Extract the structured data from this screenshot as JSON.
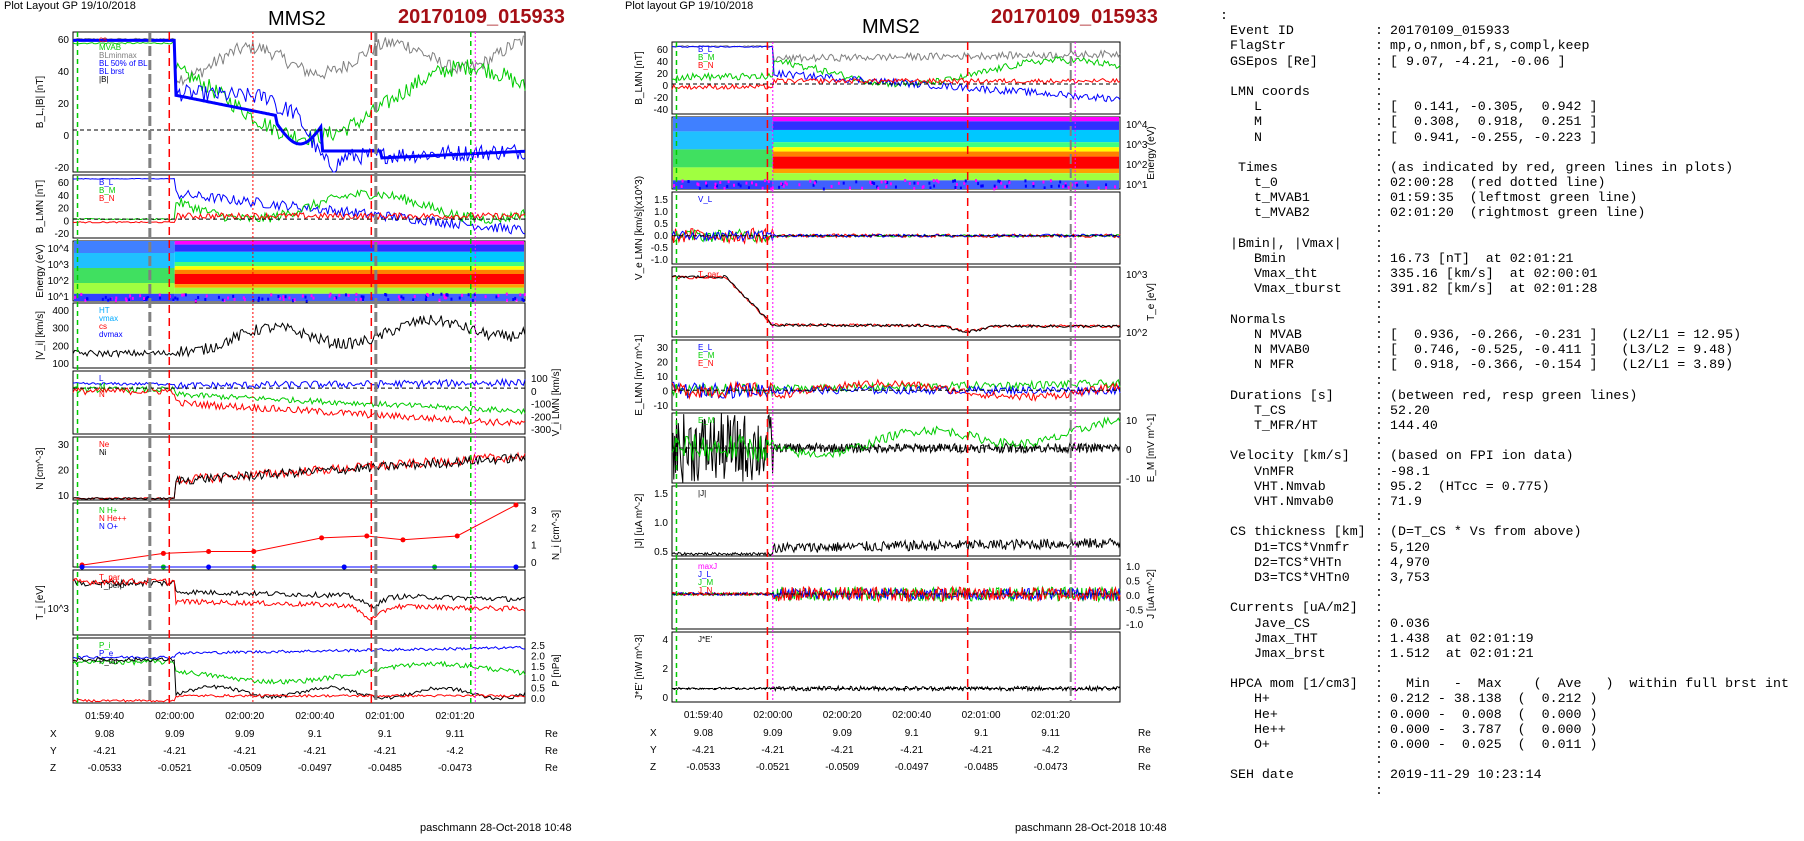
{
  "left_panel": {
    "layout_label": "Plot Layout GP 19/10/2018",
    "spacecraft": "MMS2",
    "event": "20170109_015933",
    "footer": "paschmann 28-Oct-2018 10:48"
  },
  "middle_panel": {
    "layout_label": "Plot layout GP 19/10/2018",
    "spacecraft": "MMS2",
    "event": "20170109_015933",
    "footer": "paschmann 28-Oct-2018 10:48"
  },
  "colors": {
    "red": "#ff0000",
    "green": "#00cc00",
    "blue": "#0000ff",
    "magenta": "#ff00ff",
    "gray": "#808080",
    "black": "#000000",
    "event_red": "#a50f15"
  },
  "chart_data": [
    {
      "type": "line",
      "title": "",
      "time_axis": {
        "tick_labels": [
          "01:59:40",
          "02:00:00",
          "02:00:20",
          "02:00:40",
          "02:01:00",
          "02:01:20"
        ],
        "position_rows": [
          {
            "axis": "X",
            "values": [
              "9.08",
              "9.09",
              "9.09",
              "9.1",
              "9.1",
              "9.11"
            ],
            "unit": "Re"
          },
          {
            "axis": "Y",
            "values": [
              "-4.21",
              "-4.21",
              "-4.21",
              "-4.21",
              "-4.21",
              "-4.2"
            ],
            "unit": "Re"
          },
          {
            "axis": "Z",
            "values": [
              "-0.0533",
              "-0.0521",
              "-0.0509",
              "-0.0497",
              "-0.0485",
              "-0.0473"
            ],
            "unit": "Re"
          }
        ]
      },
      "panels": [
        {
          "ylabel": "B_L,|B| [nT]",
          "yticks": [
            "60",
            "40",
            "20",
            "0",
            "-20"
          ],
          "legend": [
            "cs",
            "MVAB",
            "BLminmax",
            "BL 50% of BL",
            "BL brst",
            "|B|"
          ]
        },
        {
          "ylabel": "B_LMN [nT]",
          "yticks": [
            "60",
            "40",
            "20",
            "0",
            "-20"
          ],
          "legend": [
            "B_L",
            "B_M",
            "B_N"
          ]
        },
        {
          "ylabel": "Energy (eV)",
          "yticks": [
            "10^4",
            "10^3",
            "10^2",
            "10^1"
          ],
          "type": "heatmap"
        },
        {
          "ylabel": "|V_i| [km/s]",
          "yticks": [
            "400",
            "300",
            "200",
            "100"
          ],
          "legend": [
            "HT",
            "vmax",
            "cs",
            "dvmax"
          ]
        },
        {
          "ylabel": "V_i LMN [km/s]",
          "yticks": [
            "100",
            "0",
            "-100",
            "-200",
            "-300"
          ],
          "legend": [
            "L",
            "M",
            "N"
          ]
        },
        {
          "ylabel": "N [cm^-3]",
          "yticks": [
            "30",
            "20",
            "10"
          ],
          "legend": [
            "Ne",
            "Ni"
          ]
        },
        {
          "ylabel": "N_i [cm^-3]",
          "yticks": [
            "3",
            "2",
            "1",
            "0"
          ],
          "legend": [
            "N H+",
            "N He++",
            "N O+"
          ]
        },
        {
          "ylabel": "T_i [eV]",
          "yticks": [
            "10^3"
          ],
          "legend": [
            "T_par",
            "T_perp"
          ]
        },
        {
          "ylabel": "P [nPa]",
          "yticks": [
            "2.5",
            "2.0",
            "1.5",
            "1.0",
            "0.5",
            "0.0"
          ],
          "legend": [
            "P_i",
            "P_e",
            "P_tot"
          ]
        }
      ]
    },
    {
      "type": "line",
      "title": "",
      "time_axis": {
        "tick_labels": [
          "01:59:40",
          "02:00:00",
          "02:00:20",
          "02:00:40",
          "02:01:00",
          "02:01:20"
        ],
        "position_rows": [
          {
            "axis": "X",
            "values": [
              "9.08",
              "9.09",
              "9.09",
              "9.1",
              "9.1",
              "9.11"
            ],
            "unit": "Re"
          },
          {
            "axis": "Y",
            "values": [
              "-4.21",
              "-4.21",
              "-4.21",
              "-4.21",
              "-4.21",
              "-4.2"
            ],
            "unit": "Re"
          },
          {
            "axis": "Z",
            "values": [
              "-0.0533",
              "-0.0521",
              "-0.0509",
              "-0.0497",
              "-0.0485",
              "-0.0473"
            ],
            "unit": "Re"
          }
        ]
      },
      "panels": [
        {
          "ylabel": "B_LMN [nT]",
          "yticks": [
            "60",
            "40",
            "20",
            "0",
            "-20",
            "-40"
          ],
          "legend": [
            "B_L",
            "B_M",
            "B_N"
          ]
        },
        {
          "ylabel": "Energy (eV)",
          "yticks": [
            "10^4",
            "10^3",
            "10^2",
            "10^1"
          ],
          "type": "heatmap"
        },
        {
          "ylabel": "V_e LMN [km/s](x10^3)",
          "yticks": [
            "1.5",
            "1.0",
            "0.5",
            "0.0",
            "-0.5",
            "-1.0"
          ],
          "legend": [
            "V_L"
          ]
        },
        {
          "ylabel": "T_e [eV]",
          "yticks": [
            "10^3",
            "10^2"
          ],
          "legend": [
            "T_par"
          ]
        },
        {
          "ylabel": "E_LMN [mV m^-1]",
          "yticks": [
            "30",
            "20",
            "10",
            "0",
            "-10"
          ],
          "legend": [
            "E_L",
            "E_M",
            "E_N"
          ]
        },
        {
          "ylabel": "E_M [mV m^-1]",
          "yticks": [
            "10",
            "0",
            "-10"
          ],
          "legend": [
            "E_M"
          ]
        },
        {
          "ylabel": "|J| [uA m^-2]",
          "yticks": [
            "1.5",
            "1.0",
            "0.5"
          ],
          "legend": [
            "|J|"
          ]
        },
        {
          "ylabel": "J [uA m^-2]",
          "yticks": [
            "1.0",
            "0.5",
            "0.0",
            "-0.5",
            "-1.0"
          ],
          "legend": [
            "maxJ",
            "J_L",
            "J_M",
            "J_N"
          ]
        },
        {
          "ylabel": "J*E' [nW m^-3]",
          "yticks": [
            "4",
            "2",
            "0"
          ],
          "legend": [
            "J*E'"
          ]
        }
      ]
    }
  ],
  "info": {
    "leading_colon": ":",
    "rows": [
      {
        "k": "Event ID",
        "v": "20170109_015933"
      },
      {
        "k": "FlagStr",
        "v": "mp,o,nmon,bf,s,compl,keep"
      },
      {
        "k": "GSEpos [Re]",
        "v": "[ 9.07, -4.21, -0.06 ]"
      },
      {
        "k": "",
        "v": ""
      },
      {
        "k": "LMN coords",
        "v": ""
      },
      {
        "k": "   L",
        "v": "[  0.141, -0.305,  0.942 ]"
      },
      {
        "k": "   M",
        "v": "[  0.308,  0.918,  0.251 ]"
      },
      {
        "k": "   N",
        "v": "[  0.941, -0.255, -0.223 ]"
      },
      {
        "k": "",
        "v": ""
      },
      {
        "k": " Times",
        "v": "(as indicated by red, green lines in plots)"
      },
      {
        "k": "   t_0",
        "v": "02:00:28  (red dotted line)"
      },
      {
        "k": "   t_MVAB1",
        "v": "01:59:35  (leftmost green line)"
      },
      {
        "k": "   t_MVAB2",
        "v": "02:01:20  (rightmost green line)"
      },
      {
        "k": "",
        "v": ""
      },
      {
        "k": "|Bmin|, |Vmax|",
        "v": ""
      },
      {
        "k": "   Bmin",
        "v": "16.73 [nT]  at 02:01:21"
      },
      {
        "k": "   Vmax_tht",
        "v": "335.16 [km/s]  at 02:00:01"
      },
      {
        "k": "   Vmax_tburst",
        "v": "391.82 [km/s]  at 02:01:28"
      },
      {
        "k": "",
        "v": ""
      },
      {
        "k": "Normals",
        "v": ""
      },
      {
        "k": "   N MVAB",
        "v": "[  0.936, -0.266, -0.231 ]   (L2/L1 = 12.95)"
      },
      {
        "k": "   N MVAB0",
        "v": "[  0.746, -0.525, -0.411 ]   (L3/L2 = 9.48)"
      },
      {
        "k": "   N MFR",
        "v": "[  0.918, -0.366, -0.154 ]   (L2/L1 = 3.89)"
      },
      {
        "k": "",
        "v": ""
      },
      {
        "k": "Durations [s]",
        "v": "(between red, resp green lines)"
      },
      {
        "k": "   T_CS",
        "v": "52.20"
      },
      {
        "k": "   T_MFR/HT",
        "v": "144.40"
      },
      {
        "k": "",
        "v": ""
      },
      {
        "k": "Velocity [km/s]",
        "v": "(based on FPI ion data)"
      },
      {
        "k": "   VnMFR",
        "v": "-98.1"
      },
      {
        "k": "   VHT.Nmvab",
        "v": "95.2  (HTcc = 0.775)"
      },
      {
        "k": "   VHT.Nmvab0",
        "v": "71.9"
      },
      {
        "k": "",
        "v": ""
      },
      {
        "k": "CS thickness [km]",
        "v": "(D=T_CS * Vs from above)"
      },
      {
        "k": "   D1=TCS*Vnmfr",
        "v": "5,120"
      },
      {
        "k": "   D2=TCS*VHTn",
        "v": "4,970"
      },
      {
        "k": "   D3=TCS*VHTn0",
        "v": "3,753"
      },
      {
        "k": "",
        "v": ""
      },
      {
        "k": "Currents [uA/m2]",
        "v": ""
      },
      {
        "k": "   Jave_CS",
        "v": "0.036"
      },
      {
        "k": "   Jmax_THT",
        "v": "1.438  at 02:01:19"
      },
      {
        "k": "   Jmax_brst",
        "v": "1.512  at 02:01:21"
      },
      {
        "k": "",
        "v": ""
      },
      {
        "k": "HPCA mom [1/cm3]",
        "v": "  Min   -  Max    (  Ave   )  within full brst int"
      },
      {
        "k": "   H+",
        "v": "0.212 - 38.138  (  0.212 )"
      },
      {
        "k": "   He+",
        "v": "0.000 -  0.008  (  0.000 )"
      },
      {
        "k": "   He++",
        "v": "0.000 -  3.787  (  0.000 )"
      },
      {
        "k": "   O+",
        "v": "0.000 -  0.025  (  0.011 )"
      },
      {
        "k": "",
        "v": ""
      },
      {
        "k": "SEH date",
        "v": "2019-11-29 10:23:14"
      },
      {
        "k": "",
        "v": ""
      }
    ]
  }
}
